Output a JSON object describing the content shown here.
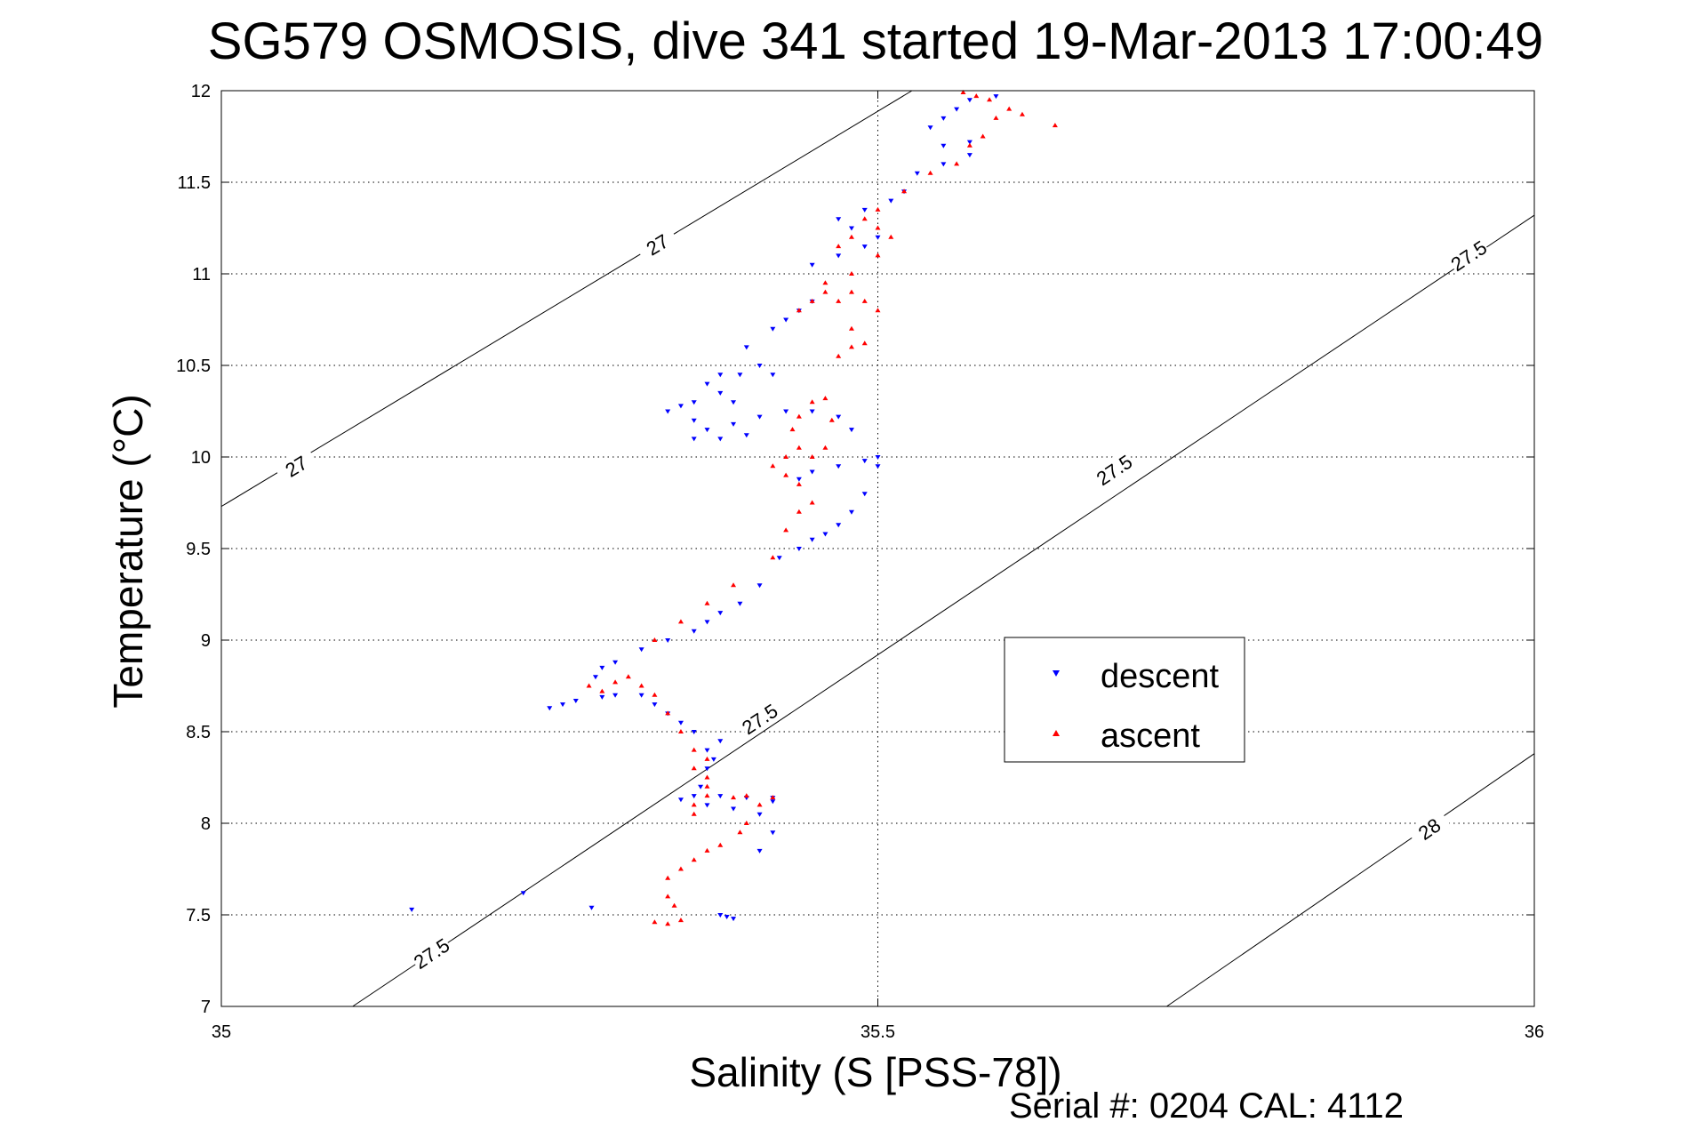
{
  "chart_data": {
    "type": "scatter",
    "title": "SG579 OSMOSIS, dive 341 started 19-Mar-2013 17:00:49",
    "xlabel": "Salinity (S [PSS-78])",
    "ylabel": "Temperature (°C)",
    "xlim": [
      35,
      36
    ],
    "ylim": [
      7,
      12
    ],
    "xticks": [
      35,
      35.5,
      36
    ],
    "yticks": [
      7,
      7.5,
      8,
      8.5,
      9,
      9.5,
      10,
      10.5,
      11,
      11.5,
      12
    ],
    "grid": true,
    "legend_position": "right",
    "footer": "Serial #: 0204  CAL: 4112",
    "contours": [
      {
        "label": "27",
        "points": [
          [
            35,
            9.73
          ],
          [
            35.526,
            12
          ]
        ],
        "label_at": [
          [
            35.057,
            9.95
          ],
          [
            35.332,
            11.16
          ]
        ]
      },
      {
        "label": "27.5",
        "points": [
          [
            35.1,
            7
          ],
          [
            36,
            11.32
          ]
        ],
        "label_at": [
          [
            35.16,
            7.29
          ],
          [
            35.41,
            8.57
          ],
          [
            35.68,
            9.93
          ],
          [
            35.95,
            11.1
          ]
        ]
      },
      {
        "label": "28",
        "points": [
          [
            35.72,
            7
          ],
          [
            36,
            8.38
          ]
        ],
        "label_at": [
          [
            35.92,
            7.97
          ]
        ]
      }
    ],
    "series": [
      {
        "name": "descent",
        "marker": "triangle-down",
        "color": "#0000ff",
        "points": [
          [
            35.145,
            7.53
          ],
          [
            35.23,
            7.62
          ],
          [
            35.282,
            7.54
          ],
          [
            35.385,
            7.49
          ],
          [
            35.39,
            7.48
          ],
          [
            35.38,
            7.5
          ],
          [
            35.41,
            7.85
          ],
          [
            35.42,
            7.95
          ],
          [
            35.41,
            8.05
          ],
          [
            35.42,
            8.12
          ],
          [
            35.42,
            8.14
          ],
          [
            35.4,
            8.14
          ],
          [
            35.38,
            8.15
          ],
          [
            35.36,
            8.15
          ],
          [
            35.35,
            8.13
          ],
          [
            35.37,
            8.1
          ],
          [
            35.39,
            8.08
          ],
          [
            35.365,
            8.2
          ],
          [
            35.37,
            8.3
          ],
          [
            35.375,
            8.35
          ],
          [
            35.37,
            8.4
          ],
          [
            35.38,
            8.45
          ],
          [
            35.36,
            8.5
          ],
          [
            35.35,
            8.55
          ],
          [
            35.34,
            8.6
          ],
          [
            35.33,
            8.65
          ],
          [
            35.32,
            8.7
          ],
          [
            35.3,
            8.7
          ],
          [
            35.29,
            8.69
          ],
          [
            35.27,
            8.67
          ],
          [
            35.26,
            8.65
          ],
          [
            35.25,
            8.63
          ],
          [
            35.285,
            8.8
          ],
          [
            35.29,
            8.85
          ],
          [
            35.3,
            8.88
          ],
          [
            35.32,
            8.95
          ],
          [
            35.34,
            9.0
          ],
          [
            35.36,
            9.05
          ],
          [
            35.37,
            9.1
          ],
          [
            35.38,
            9.15
          ],
          [
            35.395,
            9.2
          ],
          [
            35.41,
            9.3
          ],
          [
            35.425,
            9.45
          ],
          [
            35.44,
            9.5
          ],
          [
            35.45,
            9.55
          ],
          [
            35.46,
            9.58
          ],
          [
            35.47,
            9.63
          ],
          [
            35.48,
            9.7
          ],
          [
            35.49,
            9.8
          ],
          [
            35.5,
            9.95
          ],
          [
            35.5,
            10.0
          ],
          [
            35.49,
            9.98
          ],
          [
            35.47,
            9.95
          ],
          [
            35.45,
            9.92
          ],
          [
            35.44,
            9.88
          ],
          [
            35.48,
            10.15
          ],
          [
            35.47,
            10.22
          ],
          [
            35.45,
            10.25
          ],
          [
            35.43,
            10.25
          ],
          [
            35.41,
            10.22
          ],
          [
            35.39,
            10.18
          ],
          [
            35.39,
            10.3
          ],
          [
            35.38,
            10.35
          ],
          [
            35.395,
            10.45
          ],
          [
            35.41,
            10.5
          ],
          [
            35.42,
            10.45
          ],
          [
            35.38,
            10.45
          ],
          [
            35.37,
            10.4
          ],
          [
            35.36,
            10.3
          ],
          [
            35.35,
            10.28
          ],
          [
            35.34,
            10.25
          ],
          [
            35.36,
            10.2
          ],
          [
            35.37,
            10.15
          ],
          [
            35.4,
            10.12
          ],
          [
            35.38,
            10.1
          ],
          [
            35.36,
            10.1
          ],
          [
            35.4,
            10.6
          ],
          [
            35.42,
            10.7
          ],
          [
            35.43,
            10.75
          ],
          [
            35.44,
            10.8
          ],
          [
            35.45,
            10.85
          ],
          [
            35.45,
            11.05
          ],
          [
            35.47,
            11.1
          ],
          [
            35.49,
            11.15
          ],
          [
            35.5,
            11.2
          ],
          [
            35.48,
            11.25
          ],
          [
            35.47,
            11.3
          ],
          [
            35.49,
            11.35
          ],
          [
            35.51,
            11.4
          ],
          [
            35.52,
            11.45
          ],
          [
            35.53,
            11.55
          ],
          [
            35.55,
            11.6
          ],
          [
            35.57,
            11.65
          ],
          [
            35.55,
            11.7
          ],
          [
            35.57,
            11.72
          ],
          [
            35.54,
            11.8
          ],
          [
            35.55,
            11.85
          ],
          [
            35.56,
            11.9
          ],
          [
            35.57,
            11.95
          ],
          [
            35.59,
            11.97
          ]
        ]
      },
      {
        "name": "ascent",
        "marker": "triangle-up",
        "color": "#ff0000",
        "points": [
          [
            35.33,
            7.46
          ],
          [
            35.34,
            7.45
          ],
          [
            35.35,
            7.47
          ],
          [
            35.345,
            7.55
          ],
          [
            35.34,
            7.6
          ],
          [
            35.34,
            7.7
          ],
          [
            35.35,
            7.75
          ],
          [
            35.36,
            7.8
          ],
          [
            35.37,
            7.85
          ],
          [
            35.38,
            7.88
          ],
          [
            35.395,
            7.95
          ],
          [
            35.4,
            8.0
          ],
          [
            35.41,
            8.1
          ],
          [
            35.42,
            8.14
          ],
          [
            35.4,
            8.15
          ],
          [
            35.39,
            8.14
          ],
          [
            35.37,
            8.15
          ],
          [
            35.36,
            8.1
          ],
          [
            35.36,
            8.05
          ],
          [
            35.37,
            8.2
          ],
          [
            35.37,
            8.25
          ],
          [
            35.36,
            8.3
          ],
          [
            35.37,
            8.35
          ],
          [
            35.36,
            8.4
          ],
          [
            35.35,
            8.5
          ],
          [
            35.34,
            8.6
          ],
          [
            35.33,
            8.7
          ],
          [
            35.32,
            8.75
          ],
          [
            35.3,
            8.77
          ],
          [
            35.28,
            8.75
          ],
          [
            35.29,
            8.72
          ],
          [
            35.31,
            8.8
          ],
          [
            35.33,
            9.0
          ],
          [
            35.35,
            9.1
          ],
          [
            35.37,
            9.2
          ],
          [
            35.39,
            9.3
          ],
          [
            35.42,
            9.45
          ],
          [
            35.43,
            9.6
          ],
          [
            35.44,
            9.7
          ],
          [
            35.45,
            9.75
          ],
          [
            35.44,
            9.85
          ],
          [
            35.43,
            9.9
          ],
          [
            35.42,
            9.95
          ],
          [
            35.43,
            10.0
          ],
          [
            35.44,
            10.05
          ],
          [
            35.435,
            10.15
          ],
          [
            35.44,
            10.22
          ],
          [
            35.45,
            10.3
          ],
          [
            35.46,
            10.32
          ],
          [
            35.465,
            10.2
          ],
          [
            35.46,
            10.05
          ],
          [
            35.45,
            10.0
          ],
          [
            35.47,
            10.55
          ],
          [
            35.48,
            10.6
          ],
          [
            35.49,
            10.62
          ],
          [
            35.48,
            10.7
          ],
          [
            35.5,
            10.8
          ],
          [
            35.49,
            10.85
          ],
          [
            35.48,
            10.9
          ],
          [
            35.47,
            10.85
          ],
          [
            35.46,
            10.9
          ],
          [
            35.45,
            10.85
          ],
          [
            35.44,
            10.8
          ],
          [
            35.46,
            10.95
          ],
          [
            35.48,
            11.0
          ],
          [
            35.5,
            11.1
          ],
          [
            35.51,
            11.2
          ],
          [
            35.5,
            11.25
          ],
          [
            35.48,
            11.2
          ],
          [
            35.47,
            11.15
          ],
          [
            35.49,
            11.3
          ],
          [
            35.5,
            11.35
          ],
          [
            35.52,
            11.45
          ],
          [
            35.54,
            11.55
          ],
          [
            35.56,
            11.6
          ],
          [
            35.57,
            11.7
          ],
          [
            35.58,
            11.75
          ],
          [
            35.59,
            11.85
          ],
          [
            35.6,
            11.9
          ],
          [
            35.585,
            11.95
          ],
          [
            35.575,
            11.97
          ],
          [
            35.565,
            11.99
          ],
          [
            35.61,
            11.87
          ],
          [
            35.635,
            11.81
          ]
        ]
      }
    ]
  }
}
